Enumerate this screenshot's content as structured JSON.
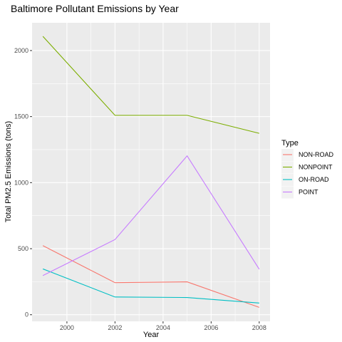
{
  "chart_data": {
    "type": "line",
    "title": "Baltimore Pollutant Emissions by Year",
    "xlabel": "Year",
    "ylabel": "Total PM2.5 Emissions (tons)",
    "x": [
      1999,
      2002,
      2005,
      2008
    ],
    "xlim": [
      1998.55,
      2008.45
    ],
    "ylim": [
      -50,
      2210
    ],
    "x_ticks": [
      2000,
      2002,
      2004,
      2006,
      2008
    ],
    "x_tick_labels": [
      "2000",
      "2002",
      "2004",
      "2006",
      "2008"
    ],
    "y_ticks": [
      0,
      500,
      1000,
      1500,
      2000
    ],
    "y_tick_labels": [
      "0",
      "500",
      "1000",
      "1500",
      "2000"
    ],
    "grid": true,
    "background": "#ebebeb",
    "legend": {
      "title": "Type",
      "position": "right"
    },
    "series": [
      {
        "name": "NON-ROAD",
        "color": "#f8766d",
        "values": [
          522.94,
          242.85,
          248.93,
          55.82
        ]
      },
      {
        "name": "NONPOINT",
        "color": "#7cae00",
        "values": [
          2107.63,
          1509.5,
          1509.5,
          1373.21
        ]
      },
      {
        "name": "ON-ROAD",
        "color": "#00bfc4",
        "values": [
          346.82,
          134.31,
          130.43,
          88.28
        ]
      },
      {
        "name": "POINT",
        "color": "#c77cff",
        "values": [
          296.8,
          569.26,
          1202.49,
          344.98
        ]
      }
    ]
  }
}
